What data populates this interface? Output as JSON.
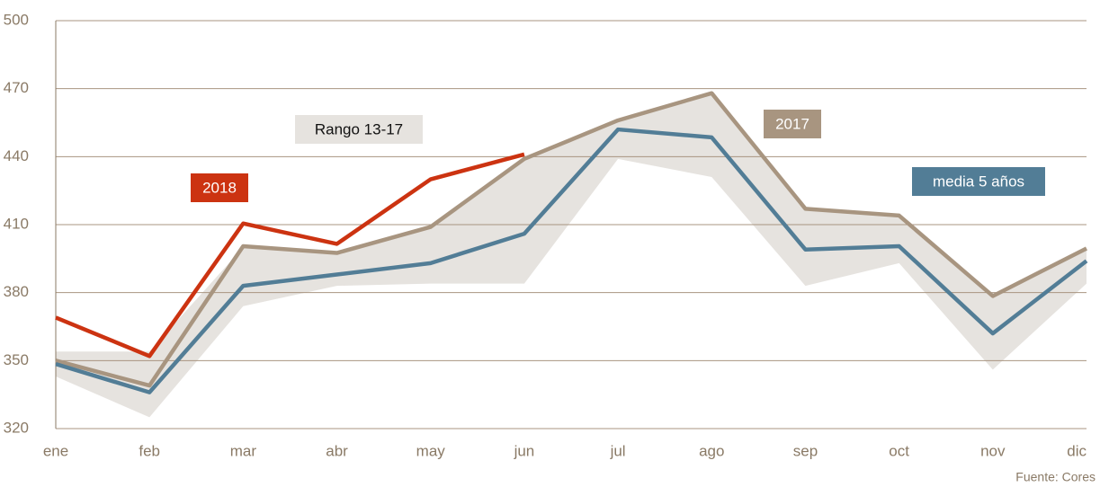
{
  "chart_data": {
    "type": "line",
    "categories": [
      "ene",
      "feb",
      "mar",
      "abr",
      "may",
      "jun",
      "jul",
      "ago",
      "sep",
      "oct",
      "nov",
      "dic"
    ],
    "ylim": [
      320,
      500
    ],
    "yticks": [
      320,
      350,
      380,
      410,
      440,
      470,
      500
    ],
    "grid": true,
    "band": {
      "name": "Rango 13-17",
      "color": "#e6e3df",
      "lower": [
        343,
        325,
        374,
        383,
        384,
        384,
        439,
        431,
        383,
        393,
        346,
        384
      ],
      "upper": [
        354,
        354,
        400,
        397.5,
        409,
        439,
        456,
        468,
        417,
        414,
        378,
        399.5
      ]
    },
    "series": [
      {
        "name": "2018",
        "color": "#cc3311",
        "values": [
          369,
          352,
          410.5,
          401.5,
          430,
          441,
          null,
          null,
          null,
          null,
          null,
          null
        ]
      },
      {
        "name": "2017",
        "color": "#a89580",
        "values": [
          350,
          339,
          400.5,
          397.5,
          409,
          439,
          456,
          468,
          417,
          414,
          378.5,
          399.5
        ]
      },
      {
        "name": "media 5 años",
        "color": "#527d96",
        "values": [
          348.5,
          336,
          383,
          388,
          393,
          406,
          452,
          448.5,
          399,
          400.5,
          362,
          394
        ]
      }
    ],
    "source": "Fuente: Cores"
  }
}
